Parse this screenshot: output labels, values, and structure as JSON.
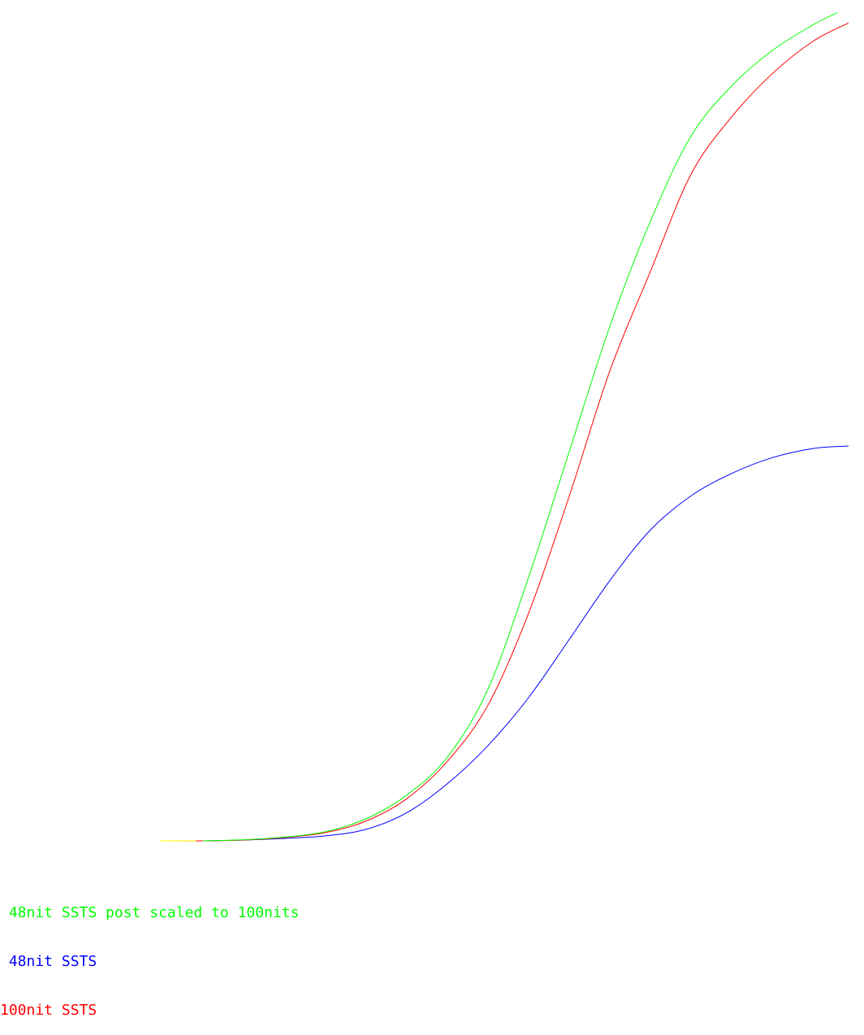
{
  "chart_data": {
    "type": "line",
    "grid": false,
    "legend_placement": "bottom-left",
    "series": [
      {
        "name": "48nit SSTS post scaled to 100nits",
        "color": "#00ff00",
        "points": [
          [
            0.235,
            0.0
          ],
          [
            0.283,
            0.0013
          ],
          [
            0.33,
            0.0046
          ],
          [
            0.377,
            0.0111
          ],
          [
            0.424,
            0.0268
          ],
          [
            0.471,
            0.0553
          ],
          [
            0.518,
            0.1012
          ],
          [
            0.565,
            0.1834
          ],
          [
            0.612,
            0.3185
          ],
          [
            0.659,
            0.4698
          ],
          [
            0.706,
            0.6207
          ],
          [
            0.753,
            0.7475
          ],
          [
            0.8,
            0.8499
          ],
          [
            0.847,
            0.9103
          ],
          [
            0.894,
            0.953
          ],
          [
            0.941,
            0.9837
          ],
          [
            0.969,
            0.9985
          ]
        ]
      },
      {
        "name": "48nit SSTS",
        "color": "#0000ff",
        "points": [
          [
            0.235,
            0.0
          ],
          [
            0.283,
            0.001
          ],
          [
            0.33,
            0.003
          ],
          [
            0.377,
            0.006
          ],
          [
            0.424,
            0.014
          ],
          [
            0.471,
            0.034
          ],
          [
            0.518,
            0.069
          ],
          [
            0.565,
            0.115
          ],
          [
            0.612,
            0.173
          ],
          [
            0.659,
            0.243
          ],
          [
            0.706,
            0.314
          ],
          [
            0.753,
            0.375
          ],
          [
            0.8,
            0.416
          ],
          [
            0.847,
            0.443
          ],
          [
            0.894,
            0.462
          ],
          [
            0.941,
            0.473
          ],
          [
            0.982,
            0.476
          ]
        ]
      },
      {
        "name": "100nit SSTS",
        "color": "#ff0000",
        "points": [
          [
            0.185,
            0.0
          ],
          [
            0.235,
            0.0
          ],
          [
            0.283,
            0.001
          ],
          [
            0.33,
            0.004
          ],
          [
            0.377,
            0.01
          ],
          [
            0.424,
            0.024
          ],
          [
            0.471,
            0.051
          ],
          [
            0.518,
            0.096
          ],
          [
            0.565,
            0.164
          ],
          [
            0.612,
            0.275
          ],
          [
            0.659,
            0.416
          ],
          [
            0.706,
            0.567
          ],
          [
            0.753,
            0.687
          ],
          [
            0.8,
            0.804
          ],
          [
            0.847,
            0.873
          ],
          [
            0.894,
            0.925
          ],
          [
            0.941,
            0.964
          ],
          [
            0.982,
            0.986
          ]
        ]
      }
    ],
    "highlight": {
      "name": "",
      "color": "#ffff00",
      "x_range": [
        0.185,
        0.227
      ]
    }
  },
  "legend": {
    "items": [
      {
        "label": " 48nit SSTS post scaled to 100nits",
        "color": "#00ff00"
      },
      {
        "label": " 48nit SSTS",
        "color": "#0000ff"
      },
      {
        "label": "100nit SSTS",
        "color": "#ff0000"
      }
    ]
  }
}
